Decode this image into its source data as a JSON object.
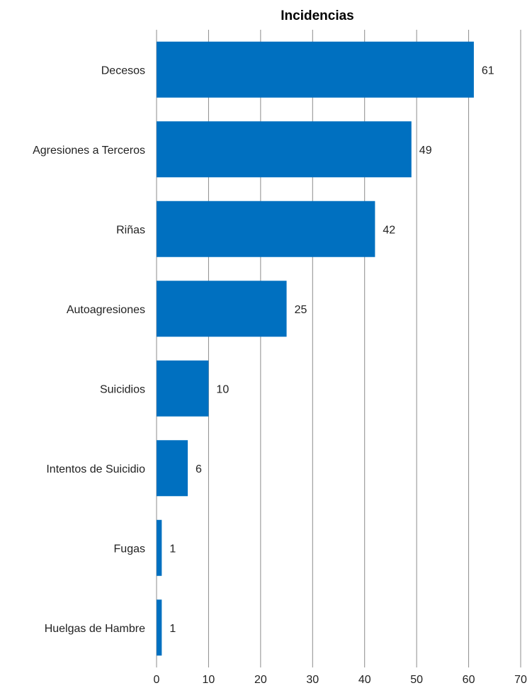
{
  "chart_data": {
    "type": "bar",
    "orientation": "horizontal",
    "title": "Incidencias",
    "xlabel": "",
    "ylabel": "",
    "categories": [
      "Decesos",
      "Agresiones a Terceros",
      "Riñas",
      "Autoagresiones",
      "Suicidios",
      "Intentos de Suicidio",
      "Fugas",
      "Huelgas de Hambre"
    ],
    "values": [
      61,
      49,
      42,
      25,
      10,
      6,
      1,
      1
    ],
    "data_labels": [
      "61",
      "49",
      "42",
      "25",
      "10",
      "6",
      "1",
      "1"
    ],
    "xlim": [
      0,
      70
    ],
    "x_ticks": [
      0,
      10,
      20,
      30,
      40,
      50,
      60,
      70
    ],
    "x_tick_labels": [
      "0",
      "10",
      "20",
      "30",
      "40",
      "50",
      "60",
      "70"
    ],
    "grid": "vertical",
    "legend": "none",
    "colors": {
      "bar": "#0070C0",
      "grid": "#8C8C8C",
      "text": "#222222"
    }
  }
}
